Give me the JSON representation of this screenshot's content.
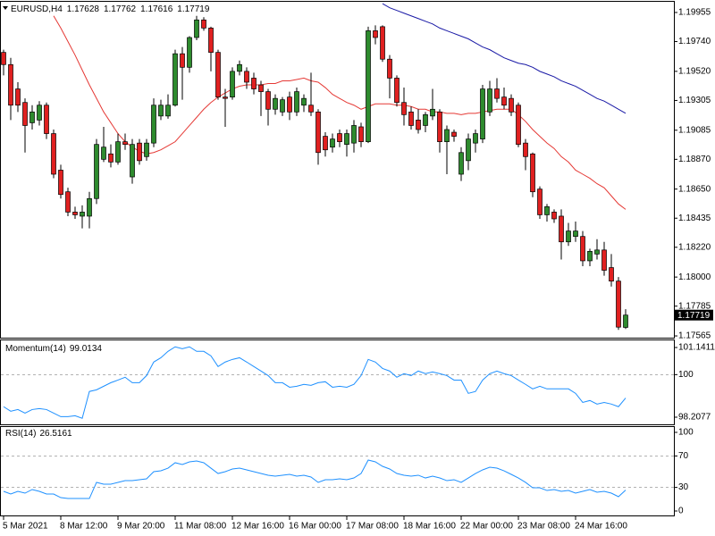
{
  "chart_data": [
    {
      "type": "candlestick",
      "title": "EURUSD,H4",
      "categories": [
        "5 Mar 2021",
        null,
        null,
        null,
        null,
        null,
        null,
        null,
        "8 Mar 12:00",
        null,
        null,
        null,
        null,
        null,
        null,
        null,
        "9 Mar 20:00",
        null,
        null,
        null,
        null,
        null,
        null,
        null,
        "11 Mar 08:00",
        null,
        null,
        null,
        null,
        null,
        null,
        null,
        "12 Mar 16:00",
        null,
        null,
        null,
        null,
        null,
        null,
        null,
        "16 Mar 00:00",
        null,
        null,
        null,
        null,
        null,
        null,
        null,
        "17 Mar 08:00",
        null,
        null,
        null,
        null,
        null,
        null,
        null,
        "18 Mar 16:00",
        null,
        null,
        null,
        null,
        null,
        null,
        null,
        "22 Mar 00:00",
        null,
        null,
        null,
        null,
        null,
        null,
        null,
        "23 Mar 08:00",
        null,
        null,
        null,
        null,
        null,
        null,
        null,
        "24 Mar 16:00",
        null,
        null,
        null,
        null,
        null,
        null,
        null
      ],
      "open": [
        1.1966,
        1.1957,
        1.1939,
        1.1929,
        1.1914,
        1.1916,
        1.1927,
        1.1906,
        1.1879,
        1.1863,
        1.1848,
        1.1845,
        1.1845,
        1.1858,
        1.1887,
        1.1891,
        1.1885,
        1.19,
        1.1874,
        1.1899,
        1.1889,
        1.1899,
        1.1919,
        1.1919,
        1.1927,
        1.1965,
        1.1955,
        1.1977,
        1.199,
        1.1984,
        1.1966,
        1.1933,
        1.1933,
        1.1952,
        1.1952,
        1.1947,
        1.1942,
        1.1937,
        1.1924,
        1.1922,
        1.1933,
        1.1922,
        1.1927,
        1.1927,
        1.1922,
        1.1904,
        1.1896,
        1.1906,
        1.1898,
        1.1899,
        1.1911,
        1.19,
        1.1982,
        1.1985,
        1.1961,
        1.1947,
        1.1929,
        1.1922,
        1.1916,
        1.1912,
        1.1919,
        1.1922,
        1.19,
        1.1907,
        1.1876,
        1.1886,
        1.1899,
        1.1902,
        1.1922,
        1.1939,
        1.1933,
        1.1932,
        1.1927,
        1.1899,
        1.1891,
        1.1865,
        1.1846,
        1.1848,
        1.1845,
        1.1826,
        1.183,
        1.183,
        1.1812,
        1.1817,
        1.182,
        1.1807,
        1.1797,
        1.17628
      ],
      "high": [
        1.1968,
        1.1962,
        1.1944,
        1.1932,
        1.1927,
        1.193,
        1.1929,
        1.1909,
        1.1883,
        1.1866,
        1.1852,
        1.1853,
        1.1863,
        1.1902,
        1.1911,
        1.1898,
        1.1906,
        1.1906,
        1.1902,
        1.1902,
        1.1902,
        1.1932,
        1.1931,
        1.1935,
        1.1968,
        1.197,
        1.1978,
        1.1993,
        1.1992,
        1.1985,
        1.1968,
        1.1939,
        1.1955,
        1.196,
        1.1955,
        1.1951,
        1.1945,
        1.1939,
        1.1935,
        1.1933,
        1.1937,
        1.194,
        1.1935,
        1.1951,
        1.1924,
        1.1907,
        1.1906,
        1.1909,
        1.1909,
        1.1916,
        1.1914,
        1.1985,
        1.1986,
        1.1986,
        1.1964,
        1.1949,
        1.194,
        1.1926,
        1.1924,
        1.1922,
        1.1939,
        1.1924,
        1.1912,
        1.1909,
        1.1896,
        1.1906,
        1.1909,
        1.1942,
        1.1945,
        1.1947,
        1.194,
        1.1935,
        1.1929,
        1.1902,
        1.1892,
        1.1867,
        1.1854,
        1.185,
        1.185,
        1.184,
        1.1841,
        1.1834,
        1.1821,
        1.1828,
        1.1826,
        1.1817,
        1.18,
        1.17762
      ],
      "low": [
        1.1949,
        1.1916,
        1.1922,
        1.1892,
        1.1909,
        1.1912,
        1.1902,
        1.1873,
        1.1858,
        1.1845,
        1.1843,
        1.1836,
        1.1836,
        1.1854,
        1.1885,
        1.1881,
        1.1883,
        1.1894,
        1.1869,
        1.1883,
        1.1886,
        1.1896,
        1.1916,
        1.1917,
        1.1926,
        1.1931,
        1.1951,
        1.1975,
        1.1982,
        1.1952,
        1.1931,
        1.1911,
        1.1931,
        1.1949,
        1.1939,
        1.1935,
        1.1919,
        1.1912,
        1.192,
        1.1919,
        1.1916,
        1.1919,
        1.1922,
        1.1919,
        1.1883,
        1.1889,
        1.1892,
        1.1896,
        1.1889,
        1.1892,
        1.1896,
        1.1899,
        1.1972,
        1.1959,
        1.1932,
        1.1926,
        1.1912,
        1.1909,
        1.1906,
        1.1907,
        1.1916,
        1.1892,
        1.1876,
        1.19,
        1.1871,
        1.1879,
        1.1892,
        1.1899,
        1.1919,
        1.1929,
        1.1924,
        1.1919,
        1.1896,
        1.1879,
        1.1859,
        1.1843,
        1.1841,
        1.184,
        1.1813,
        1.1823,
        1.1826,
        1.1808,
        1.1808,
        1.1813,
        1.1801,
        1.1793,
        1.1761,
        1.17616
      ],
      "close": [
        1.1957,
        1.1927,
        1.1927,
        1.1912,
        1.1922,
        1.1927,
        1.1906,
        1.1876,
        1.1861,
        1.1848,
        1.1846,
        1.1848,
        1.1858,
        1.1898,
        1.1896,
        1.1885,
        1.19,
        1.1898,
        1.1898,
        1.1886,
        1.1899,
        1.1927,
        1.1927,
        1.1927,
        1.1965,
        1.1955,
        1.1977,
        1.199,
        1.1984,
        1.1966,
        1.1933,
        1.1932,
        1.1952,
        1.1957,
        1.1944,
        1.1939,
        1.1937,
        1.1924,
        1.1932,
        1.1931,
        1.1922,
        1.1937,
        1.1932,
        1.1922,
        1.1892,
        1.1894,
        1.1902,
        1.19,
        1.1906,
        1.1912,
        1.19,
        1.1982,
        1.1977,
        1.1961,
        1.1947,
        1.1929,
        1.192,
        1.1912,
        1.1909,
        1.192,
        1.1924,
        1.19,
        1.1909,
        1.1904,
        1.1892,
        1.1902,
        1.1906,
        1.1939,
        1.1939,
        1.1932,
        1.1927,
        1.1922,
        1.1898,
        1.1889,
        1.1863,
        1.1846,
        1.1852,
        1.1843,
        1.1826,
        1.1834,
        1.1834,
        1.1812,
        1.1819,
        1.182,
        1.1805,
        1.1797,
        1.1763,
        1.17719
      ],
      "up_color": "#2e8b2e",
      "down_color": "#e02020",
      "series": [
        {
          "color": "#e53935",
          "values": [
            null,
            null,
            null,
            null,
            null,
            null,
            null,
            1.1993,
            1.1984,
            1.1974,
            1.1964,
            1.1953,
            1.1942,
            1.1932,
            1.1922,
            1.1914,
            1.1906,
            1.19,
            1.1896,
            1.1893,
            1.1891,
            1.1892,
            1.1894,
            1.1897,
            1.19,
            1.1906,
            1.1912,
            1.1918,
            1.1924,
            1.1929,
            1.1933,
            1.1936,
            1.1939,
            1.1941,
            1.1942,
            1.1942,
            1.1942,
            1.1943,
            1.1943,
            1.1945,
            1.1945,
            1.1946,
            1.1947,
            1.1945,
            1.1944,
            1.194,
            1.1935,
            1.1932,
            1.1929,
            1.1927,
            1.1924,
            1.1926,
            1.1928,
            1.1928,
            1.1928,
            1.1927,
            1.1927,
            1.1926,
            1.1924,
            1.1924,
            1.1922,
            1.1922,
            1.1921,
            1.1921,
            1.192,
            1.1921,
            1.1921,
            1.1922,
            1.1923,
            1.1924,
            1.1924,
            1.1924,
            1.192,
            1.1915,
            1.1909,
            1.1904,
            1.1899,
            1.1895,
            1.1889,
            1.1885,
            1.1879,
            1.1876,
            1.1873,
            1.1869,
            1.1866,
            1.186,
            1.1854,
            1.185
          ]
        },
        {
          "color": "#1a1aa6",
          "values": [
            null,
            null,
            null,
            null,
            null,
            null,
            null,
            null,
            null,
            null,
            null,
            null,
            null,
            null,
            null,
            null,
            null,
            null,
            null,
            null,
            null,
            null,
            null,
            null,
            null,
            null,
            null,
            null,
            null,
            null,
            null,
            null,
            null,
            null,
            null,
            null,
            null,
            null,
            null,
            null,
            null,
            null,
            null,
            null,
            null,
            null,
            null,
            null,
            null,
            null,
            null,
            null,
            null,
            1.2002,
            1.1999,
            1.1997,
            1.1995,
            1.1993,
            1.1991,
            1.1989,
            1.1987,
            1.1984,
            1.1982,
            1.198,
            1.1978,
            1.1976,
            1.1973,
            1.197,
            1.1968,
            1.1965,
            1.1962,
            1.196,
            1.1958,
            1.1957,
            1.1955,
            1.1952,
            1.195,
            1.1948,
            1.1945,
            1.1943,
            1.1941,
            1.1938,
            1.1935,
            1.1932,
            1.193,
            1.1927,
            1.1924,
            1.1921
          ]
        }
      ],
      "ylim": [
        1.17552,
        1.20034
      ],
      "yticks": [
        1.19955,
        {
          "value": 1.1974,
          "label": "1.19740"
        },
        {
          "value": 1.1952,
          "label": "1.19520"
        },
        1.19305,
        1.19085,
        {
          "value": 1.1887,
          "label": "1.18870"
        },
        {
          "value": 1.1865,
          "label": "1.18650"
        },
        1.18435,
        {
          "value": 1.1822,
          "label": "1.18220"
        },
        {
          "value": 1.18,
          "label": "1.18000"
        },
        1.17785,
        1.17565
      ]
    },
    {
      "type": "line",
      "title": "Momentum(14)",
      "color": "#1e90ff",
      "values": [
        98.65,
        98.46,
        98.53,
        98.38,
        98.53,
        98.57,
        98.53,
        98.38,
        98.23,
        98.23,
        98.27,
        98.16,
        99.29,
        99.36,
        99.51,
        99.66,
        99.77,
        99.89,
        99.66,
        99.66,
        99.96,
        100.53,
        100.71,
        100.98,
        101.17,
        101.09,
        101.17,
        100.98,
        100.98,
        100.79,
        100.34,
        100.53,
        100.64,
        100.71,
        100.53,
        100.34,
        100.15,
        99.96,
        99.66,
        99.66,
        99.47,
        99.51,
        99.59,
        99.55,
        99.66,
        99.7,
        99.47,
        99.51,
        99.47,
        99.59,
        99.96,
        100.64,
        100.53,
        100.26,
        100.15,
        99.89,
        100.04,
        99.96,
        100.15,
        100.04,
        100.11,
        100.04,
        99.96,
        99.77,
        99.77,
        99.21,
        99.29,
        99.77,
        100.04,
        100.15,
        100.04,
        99.96,
        99.77,
        99.59,
        99.4,
        99.51,
        99.4,
        99.4,
        99.4,
        99.4,
        99.21,
        98.83,
        98.91,
        98.76,
        98.83,
        98.76,
        98.65,
        99.0134
      ],
      "ylim": [
        97.907,
        101.367
      ],
      "yticks": [
        101.1411,
        100,
        98.2077
      ],
      "levels": [
        100
      ]
    },
    {
      "type": "line",
      "title": "RSI(14)",
      "color": "#1e90ff",
      "values": [
        25,
        21.6,
        25,
        22.7,
        27.3,
        25,
        21.6,
        21.6,
        17,
        15.9,
        15.9,
        15.9,
        15.9,
        36.4,
        34.1,
        34.1,
        36.4,
        38.6,
        38.6,
        39.8,
        40.9,
        50,
        51.1,
        54.5,
        61.4,
        59.1,
        62.5,
        63.6,
        61.4,
        54.5,
        47.7,
        50,
        53.4,
        54.5,
        52.3,
        50,
        47.7,
        45.5,
        44.3,
        45.5,
        46.6,
        44.3,
        45.5,
        43.2,
        36.4,
        39.8,
        39.8,
        40.9,
        39.8,
        42,
        47.7,
        64.8,
        62.5,
        56.8,
        53.4,
        47.7,
        45.5,
        44.3,
        45.5,
        42,
        44.3,
        42,
        38.6,
        39.8,
        36.4,
        42,
        47.7,
        52.3,
        55.7,
        54.5,
        51.1,
        46.6,
        42,
        36.4,
        29.5,
        29.5,
        26.1,
        27.3,
        25,
        26.1,
        22.7,
        25,
        27.3,
        23.9,
        25,
        22.7,
        18.2,
        26.5161
      ],
      "ylim": [
        -6.8,
        106.8
      ],
      "yticks": [
        100,
        70,
        30,
        0
      ],
      "levels": [
        70,
        30
      ]
    }
  ]
}
